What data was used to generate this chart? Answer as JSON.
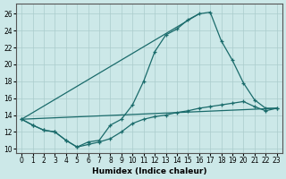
{
  "xlabel": "Humidex (Indice chaleur)",
  "background_color": "#cce8e8",
  "line_color": "#1a6b6b",
  "grid_color": "#aacccc",
  "xlim": [
    -0.5,
    23.5
  ],
  "ylim": [
    9.5,
    27.2
  ],
  "xticks": [
    0,
    1,
    2,
    3,
    4,
    5,
    6,
    7,
    8,
    9,
    10,
    11,
    12,
    13,
    14,
    15,
    16,
    17,
    18,
    19,
    20,
    21,
    22,
    23
  ],
  "yticks": [
    10,
    12,
    14,
    16,
    18,
    20,
    22,
    24,
    26
  ],
  "curve1_x": [
    0,
    1,
    2,
    3,
    4,
    5,
    6,
    7,
    8,
    9,
    10,
    11,
    12,
    13,
    14,
    15,
    16,
    17,
    18,
    19,
    20,
    21,
    22,
    23
  ],
  "curve1_y": [
    13.5,
    12.8,
    12.2,
    12.0,
    11.0,
    10.2,
    10.8,
    11.0,
    12.8,
    13.5,
    15.2,
    18.0,
    21.5,
    23.5,
    24.2,
    25.3,
    26.0,
    26.2,
    22.8,
    20.5,
    17.8,
    15.8,
    14.8,
    14.8
  ],
  "curve2_x": [
    0,
    1,
    2,
    3,
    4,
    5,
    6,
    7,
    8,
    9,
    10,
    11,
    12,
    13,
    14,
    15,
    16,
    17,
    18,
    19,
    20,
    21,
    22,
    23
  ],
  "curve2_y": [
    13.5,
    12.8,
    12.2,
    12.0,
    11.0,
    10.2,
    10.5,
    10.8,
    11.2,
    12.0,
    13.0,
    13.5,
    13.8,
    14.0,
    14.3,
    14.5,
    14.8,
    15.0,
    15.2,
    15.4,
    15.6,
    15.0,
    14.5,
    14.8
  ],
  "line_diag1": [
    [
      0,
      16
    ],
    [
      13.5,
      26.0
    ]
  ],
  "line_diag2": [
    [
      0,
      23
    ],
    [
      13.5,
      14.8
    ]
  ]
}
